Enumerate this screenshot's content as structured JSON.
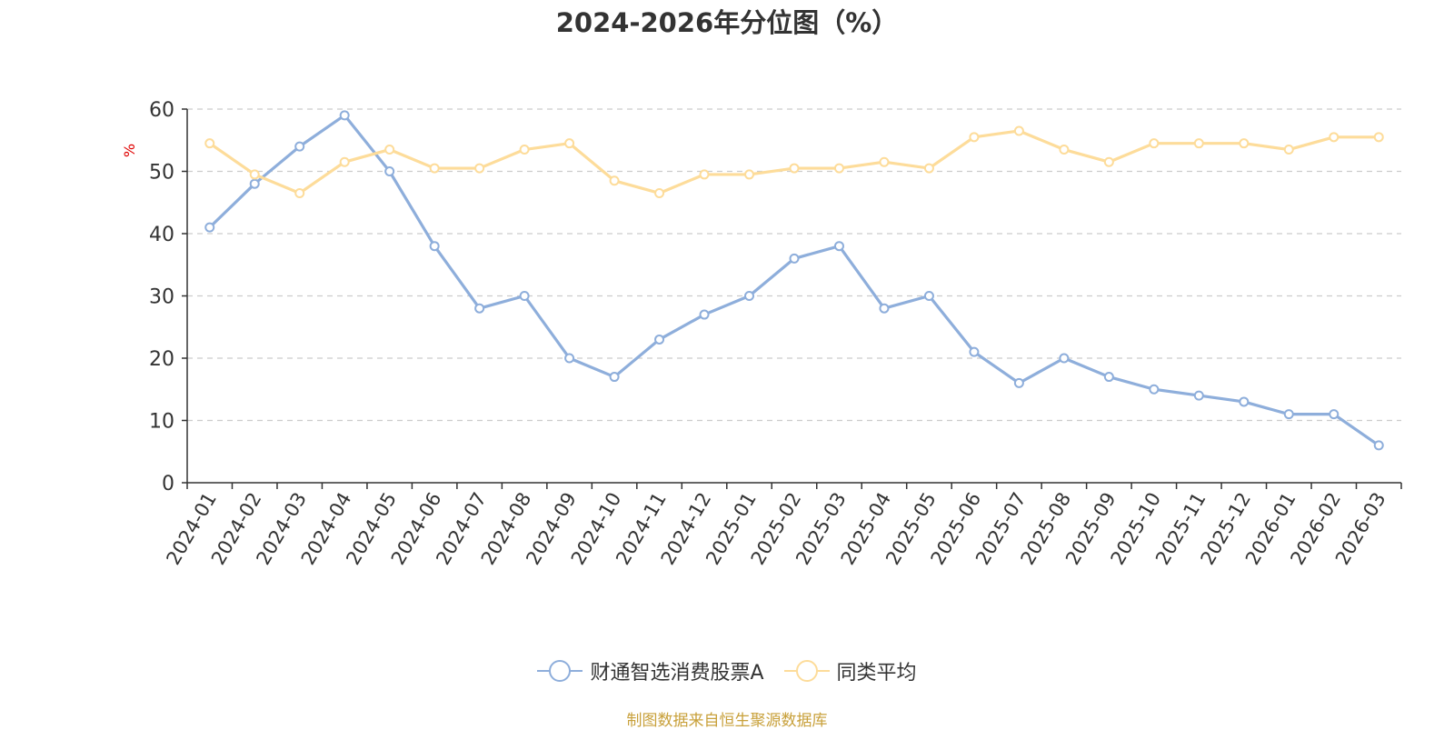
{
  "title": "2024-2026年分位图（%）",
  "source_note": "制图数据来自恒生聚源数据库",
  "colors": {
    "series_1": "#8eaedb",
    "series_2": "#fddc9a",
    "source_note": "#c8a03a",
    "ylabel": "#e00000",
    "grid": "#cccccc",
    "axis": "#333333"
  },
  "chart_data": {
    "type": "line",
    "title": "2024-2026年分位图（%）",
    "xlabel": "",
    "ylabel": "%",
    "ylim": [
      0,
      60
    ],
    "yticks": [
      0,
      10,
      20,
      30,
      40,
      50,
      60
    ],
    "grid": "horizontal dashed",
    "legend_position": "bottom-center",
    "categories": [
      "2024-01",
      "2024-02",
      "2024-03",
      "2024-04",
      "2024-05",
      "2024-06",
      "2024-07",
      "2024-08",
      "2024-09",
      "2024-10",
      "2024-11",
      "2024-12",
      "2025-01",
      "2025-02",
      "2025-03",
      "2025-04",
      "2025-05",
      "2025-06",
      "2025-07",
      "2025-08",
      "2025-09",
      "2025-10",
      "2025-11",
      "2025-12",
      "2026-01",
      "2026-02",
      "2026-03"
    ],
    "series": [
      {
        "name": "财通智选消费股票A",
        "color": "#8eaedb",
        "values": [
          41,
          48,
          54,
          59,
          50,
          38,
          28,
          30,
          20,
          17,
          23,
          27,
          30,
          36,
          38,
          28,
          30,
          21,
          16,
          20,
          17,
          15,
          14,
          13,
          11,
          11,
          6
        ]
      },
      {
        "name": "同类平均",
        "color": "#fddc9a",
        "values": [
          54.5,
          49.5,
          46.5,
          51.5,
          53.5,
          50.5,
          50.5,
          53.5,
          54.5,
          48.5,
          46.5,
          49.5,
          49.5,
          50.5,
          50.5,
          51.5,
          50.5,
          55.5,
          56.5,
          53.5,
          51.5,
          54.5,
          54.5,
          54.5,
          53.5,
          55.5,
          55.5
        ]
      }
    ]
  }
}
